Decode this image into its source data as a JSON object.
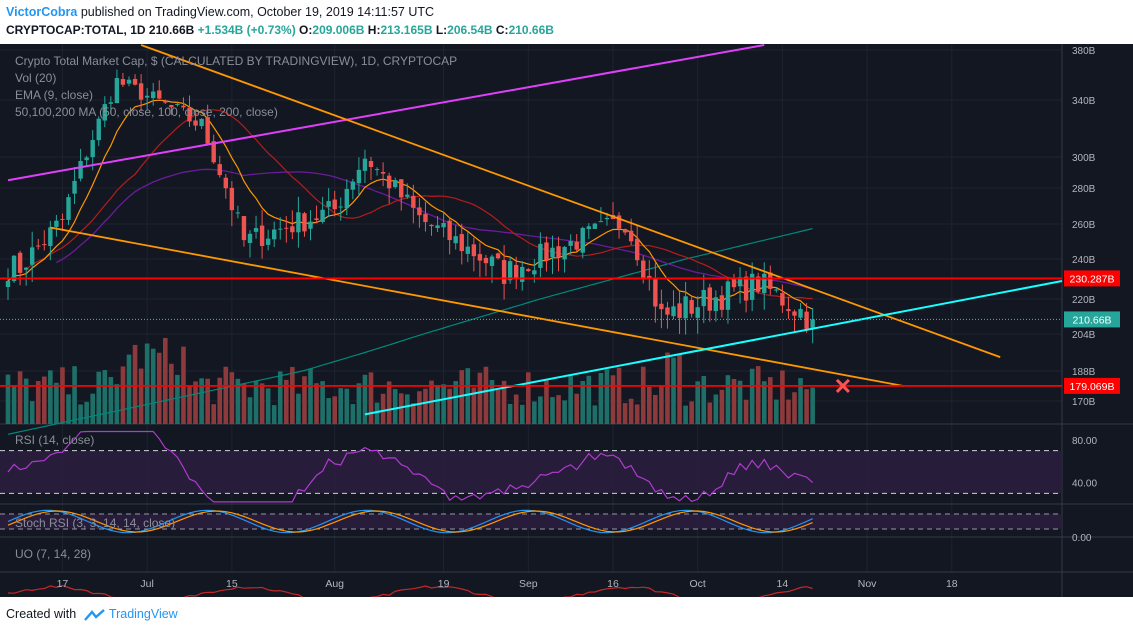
{
  "header": {
    "author": "VictorCobra",
    "published": "published on TradingView.com, October 19, 2019 14:11:57 UTC",
    "symbol": "CRYPTOCAP:TOTAL, 1D",
    "last": "210.66B",
    "change": "+1.534B (+0.73%)",
    "o_label": "O:",
    "o": "209.006B",
    "h_label": "H:",
    "h": "213.165B",
    "l_label": "L:",
    "l": "206.54B",
    "c_label": "C:",
    "c": "210.66B"
  },
  "legend": {
    "title": "Crypto Total Market Cap, $ (CALCULATED BY TRADINGVIEW), 1D, CRYPTOCAP",
    "vol": "Vol (20)",
    "ema": "EMA (9, close)",
    "ma": "50,100,200 MA (50, close, 100, close, 200, close)",
    "rsi": "RSI (14, close)",
    "stoch": "Stoch RSI (3, 3, 14, 14, close)",
    "uo": "UO (7, 14, 28)"
  },
  "colors": {
    "background": "#131722",
    "up": "#26a69a",
    "down": "#ef5350",
    "resistance": "#ff0000",
    "wedge": "#ff9800",
    "channel": "#e040fb",
    "support": "#18ffff",
    "ema": "#ff9800",
    "ma50": "#b71c1c",
    "ma100": "#6a1b9a",
    "ma200": "#00897b"
  },
  "footer": {
    "created": "Created with",
    "brand": "TradingView"
  },
  "chart_data": [
    {
      "type": "candlestick",
      "title": "Crypto Total Market Cap, $ (CALCULATED BY TRADINGVIEW), 1D, CRYPTOCAP",
      "unit": "B",
      "ylim": [
        170,
        385
      ],
      "y_ticks": [
        "380B",
        "340B",
        "300B",
        "280B",
        "260B",
        "240B",
        "220B",
        "204B",
        "188B",
        "170B"
      ],
      "x_ticks": [
        "17",
        "Jul",
        "15",
        "Aug",
        "19",
        "Sep",
        "16",
        "Oct",
        "14",
        "Nov",
        "18"
      ],
      "last_price": 210.66,
      "last_label": "210.66B",
      "horizontal_levels": [
        {
          "value": 230.287,
          "label": "230.287B"
        },
        {
          "value": 179.069,
          "label": "179.069B"
        }
      ],
      "key_closes": [
        {
          "x": "Jun 10",
          "close": 236
        },
        {
          "x": "Jun 17",
          "close": 262
        },
        {
          "x": "Jun 26",
          "close": 355
        },
        {
          "x": "Jul 10",
          "close": 322
        },
        {
          "x": "Jul 17",
          "close": 250
        },
        {
          "x": "Aug 01",
          "close": 268
        },
        {
          "x": "Aug 06",
          "close": 300
        },
        {
          "x": "Aug 15",
          "close": 263
        },
        {
          "x": "Aug 29",
          "close": 233
        },
        {
          "x": "Sep 18",
          "close": 262
        },
        {
          "x": "Sep 24",
          "close": 212
        },
        {
          "x": "Oct 10",
          "close": 228
        },
        {
          "x": "Oct 19",
          "close": 210.66
        }
      ]
    },
    {
      "type": "line",
      "title": "RSI (14, close)",
      "y_ticks": [
        "80.00",
        "40.00"
      ],
      "ylim": [
        20,
        95
      ],
      "bands": [
        70,
        30
      ]
    },
    {
      "type": "line",
      "title": "Stoch RSI (3, 3, 14, 14, close)",
      "y_ticks": [
        "0.00"
      ],
      "ylim": [
        0,
        100
      ],
      "bands": [
        80,
        20
      ]
    },
    {
      "type": "line",
      "title": "UO (7, 14, 28)",
      "ylim": [
        0,
        100
      ]
    }
  ]
}
